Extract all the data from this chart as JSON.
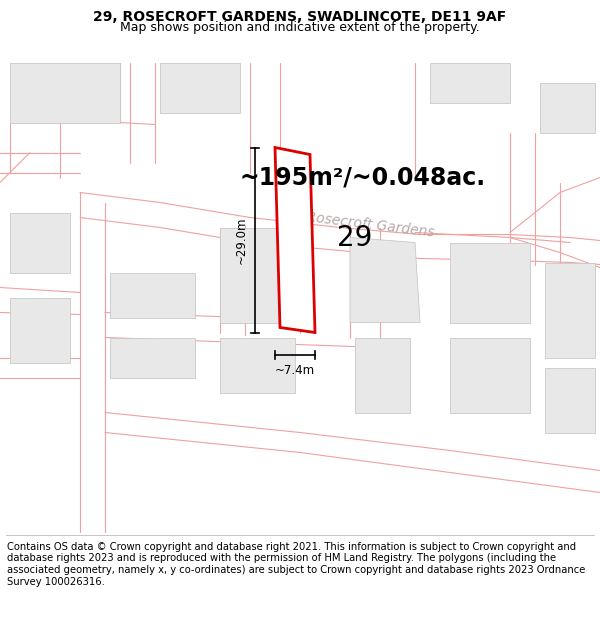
{
  "title_line1": "29, ROSECROFT GARDENS, SWADLINCOTE, DE11 9AF",
  "title_line2": "Map shows position and indicative extent of the property.",
  "area_text": "~195m²/~0.048ac.",
  "plot_number": "29",
  "dim_height": "~29.0m",
  "dim_width": "~7.4m",
  "street_label": "Rosecroft Gardens",
  "footer_text": "Contains OS data © Crown copyright and database right 2021. This information is subject to Crown copyright and database rights 2023 and is reproduced with the permission of HM Land Registry. The polygons (including the associated geometry, namely x, y co-ordinates) are subject to Crown copyright and database rights 2023 Ordnance Survey 100026316.",
  "bg_color": "#ffffff",
  "map_bg": "#ffffff",
  "road_line_color": "#f0a0a0",
  "building_fill": "#e8e8e8",
  "building_stroke": "#c8c8c8",
  "plot_fill": "#ffffff",
  "plot_stroke": "#dd0000",
  "dim_line_color": "#000000",
  "street_text_color": "#b8a8a8",
  "title_fontsize": 10,
  "subtitle_fontsize": 9,
  "area_fontsize": 17,
  "plot_label_fontsize": 20,
  "dim_fontsize": 8.5,
  "street_fontsize": 10,
  "footer_fontsize": 7.2,
  "road_lw": 0.8
}
